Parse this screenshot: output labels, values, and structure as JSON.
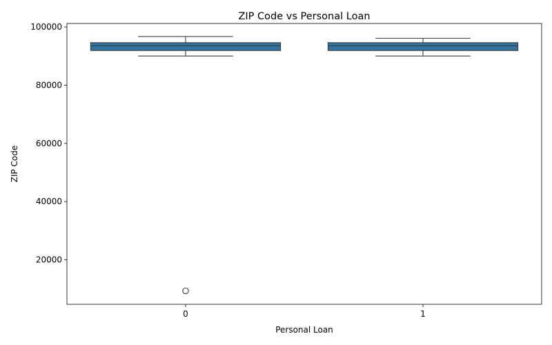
{
  "chart_data": {
    "type": "box",
    "title": "ZIP Code vs Personal Loan",
    "xlabel": "Personal Loan",
    "ylabel": "ZIP Code",
    "categories": [
      "0",
      "1"
    ],
    "ylim": [
      4700,
      101200
    ],
    "yticks": [
      20000,
      40000,
      60000,
      80000,
      100000
    ],
    "color": "#3274a1",
    "boxes": [
      {
        "category": "0",
        "whisker_low": 90000,
        "q1": 91900,
        "median": 93500,
        "q3": 94600,
        "whisker_high": 96700,
        "outliers": [
          9307
        ]
      },
      {
        "category": "1",
        "whisker_low": 90000,
        "q1": 91900,
        "median": 93500,
        "q3": 94600,
        "whisker_high": 96100,
        "outliers": []
      }
    ],
    "grid": false,
    "legend": "none"
  }
}
